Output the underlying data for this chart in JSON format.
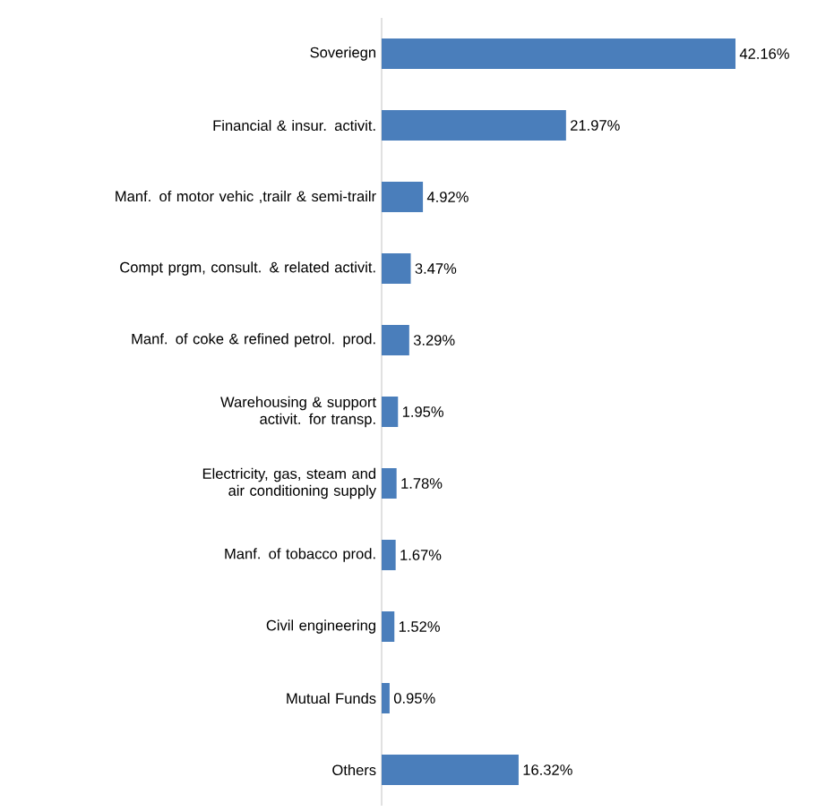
{
  "chart_data": {
    "type": "bar",
    "orientation": "horizontal",
    "color": "#4a7ebb",
    "categories": [
      "Soveriegn",
      "Financial & insur. activit.",
      "Manf. of motor vehic ,trailr & semi-trailr",
      "Compt prgm, consult. & related activit.",
      "Manf. of coke & refined petrol. prod.",
      "Warehousing & support activit. for transp.",
      "Electricity, gas, steam and air conditioning supply",
      "Manf. of tobacco prod.",
      "Civil engineering",
      "Mutual Funds",
      "Others"
    ],
    "values": [
      42.16,
      21.97,
      4.92,
      3.47,
      3.29,
      1.95,
      1.78,
      1.67,
      1.52,
      0.95,
      16.32
    ],
    "value_labels": [
      "42.16%",
      "21.97%",
      "4.92%",
      "3.47%",
      "3.29%",
      "1.95%",
      "1.78%",
      "1.67%",
      "1.52%",
      "0.95%",
      "16.32%"
    ]
  }
}
